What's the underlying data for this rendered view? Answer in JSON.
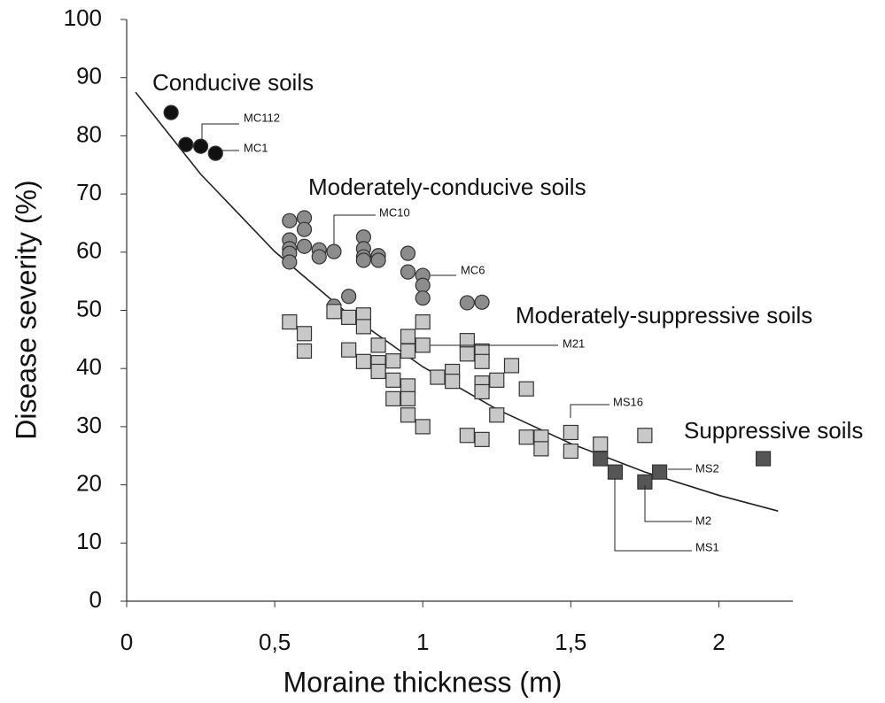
{
  "chart_data": {
    "type": "scatter",
    "x_label": "Moraine thickness (m)",
    "y_label": "Disease severity (%)",
    "xlim": [
      0,
      2.25
    ],
    "ylim": [
      0,
      100
    ],
    "xticks": [
      0,
      {
        "value": 0.5,
        "label": "0,5"
      },
      1,
      {
        "value": 1.5,
        "label": "1,5"
      },
      2
    ],
    "yticks": [
      0,
      10,
      20,
      30,
      40,
      50,
      60,
      70,
      80,
      90,
      100
    ],
    "series": [
      {
        "name": "Conducive soils",
        "color": "#111111",
        "marker": "circle",
        "x": [
          0.15,
          0.2,
          0.25,
          0.3
        ],
        "values": [
          84,
          78.5,
          78.2,
          77
        ]
      },
      {
        "name": "Moderately-conducive soils",
        "color": "#8c8c8c",
        "marker": "circle",
        "x": [
          0.55,
          0.55,
          0.55,
          0.55,
          0.55,
          0.6,
          0.6,
          0.6,
          0.65,
          0.65,
          0.7,
          0.8,
          0.8,
          0.8,
          0.8,
          0.85,
          0.85,
          0.95,
          0.95,
          1.0,
          1.0,
          1.0,
          1.15,
          1.2,
          0.75,
          0.7
        ],
        "values": [
          65.4,
          62.1,
          60.6,
          59.8,
          58.3,
          65.9,
          63.9,
          61.0,
          60.4,
          59.2,
          60.1,
          62.6,
          60.6,
          59.2,
          58.6,
          59.4,
          58.6,
          59.8,
          56.6,
          56.0,
          54.3,
          52.1,
          51.3,
          51.4,
          52.4,
          50.7
        ]
      },
      {
        "name": "Moderately-suppressive soils",
        "color": "#c8c8c8",
        "marker": "square",
        "x": [
          0.55,
          0.6,
          0.6,
          0.7,
          0.75,
          0.75,
          0.8,
          0.8,
          0.8,
          0.85,
          0.85,
          0.85,
          0.9,
          0.9,
          0.9,
          0.95,
          0.95,
          0.95,
          0.95,
          0.95,
          1.0,
          1.0,
          1.0,
          1.05,
          1.1,
          1.1,
          1.15,
          1.15,
          1.15,
          1.2,
          1.2,
          1.2,
          1.2,
          1.2,
          1.25,
          1.25,
          1.3,
          1.35,
          1.35,
          1.4,
          1.4,
          1.5,
          1.5,
          1.6,
          1.75
        ],
        "values": [
          48,
          46,
          43,
          49.8,
          43.2,
          48.8,
          49.2,
          47.2,
          41.2,
          44,
          41,
          39.5,
          41.3,
          38,
          34.8,
          45.5,
          43,
          37,
          34.8,
          32,
          48,
          44,
          30,
          38.5,
          39.5,
          37.8,
          44.8,
          42.5,
          28.5,
          43,
          41.2,
          37.5,
          36,
          27.8,
          38,
          32,
          40.5,
          36.5,
          28.2,
          28.2,
          26.2,
          29,
          25.8,
          27,
          28.5
        ]
      },
      {
        "name": "Suppressive soils",
        "color": "#555555",
        "marker": "square",
        "x": [
          1.6,
          1.65,
          1.75,
          1.8,
          2.15
        ],
        "values": [
          24.5,
          22.2,
          20.5,
          22.2,
          24.5
        ]
      }
    ],
    "curve": {
      "color": "#222222",
      "x": [
        0.03,
        0.25,
        0.5,
        0.75,
        1.0,
        1.25,
        1.5,
        1.75,
        2.0,
        2.2
      ],
      "values": [
        87.5,
        73.4,
        60.1,
        49.3,
        40.3,
        33.0,
        27.1,
        22.2,
        18.2,
        15.5
      ]
    },
    "annotations": [
      "MC112",
      "MC1",
      "MC10",
      "MC6",
      "M21",
      "MS16",
      "MS2",
      "M2",
      "MS1"
    ]
  }
}
